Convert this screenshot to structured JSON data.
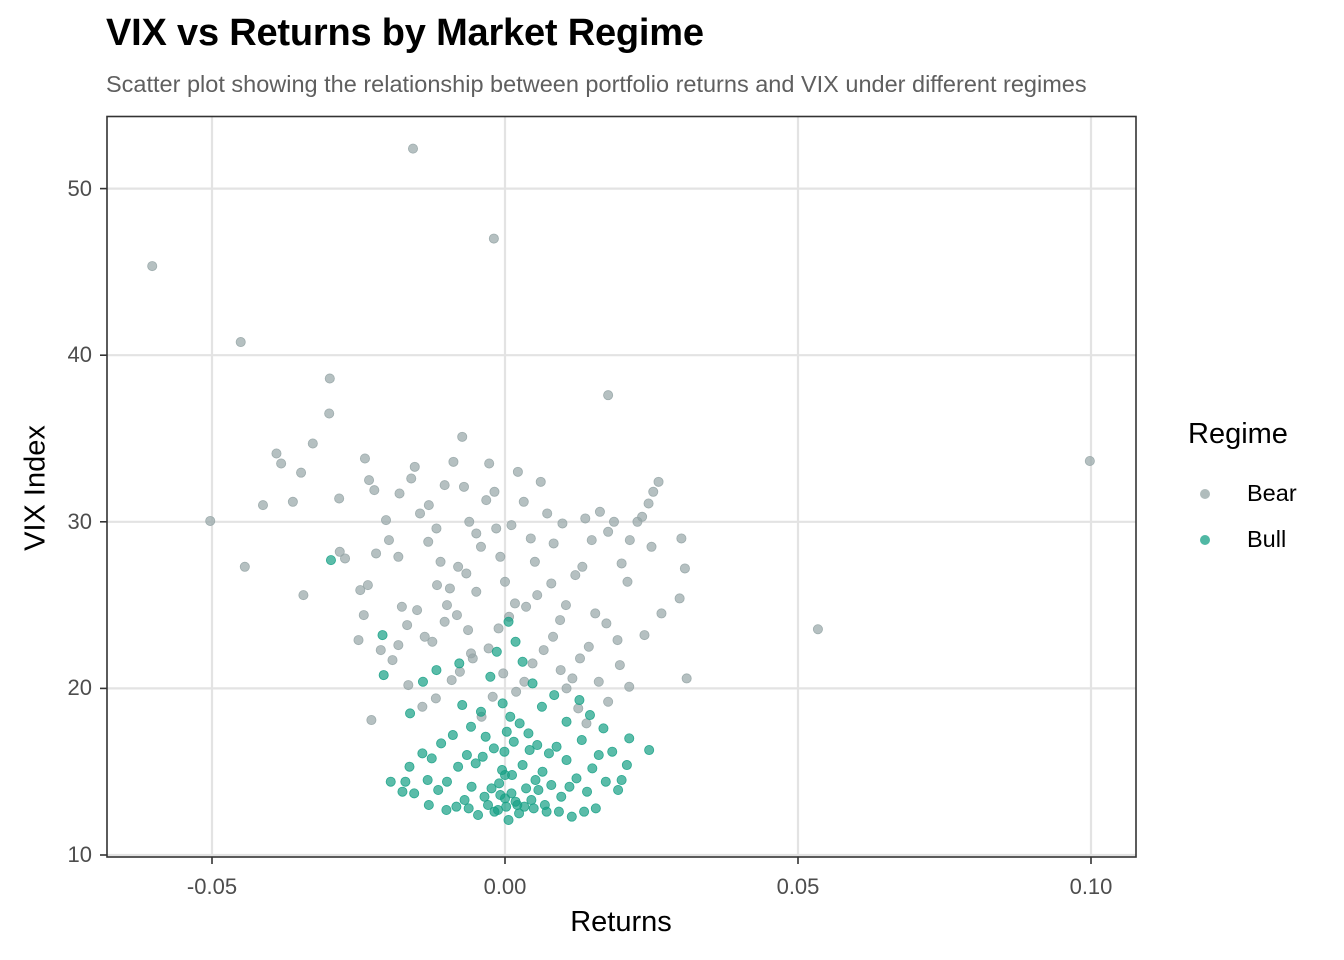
{
  "title": "VIX vs Returns by Market Regime",
  "subtitle": "Scatter plot showing the relationship between portfolio returns and VIX under different regimes",
  "axes": {
    "x_label": "Returns",
    "y_label": "VIX Index",
    "x_ticks": [
      {
        "value": -0.05,
        "label": "-0.05"
      },
      {
        "value": 0.0,
        "label": "0.00"
      },
      {
        "value": 0.05,
        "label": "0.05"
      },
      {
        "value": 0.1,
        "label": "0.10"
      }
    ],
    "y_ticks": [
      {
        "value": 10,
        "label": "10"
      },
      {
        "value": 20,
        "label": "20"
      },
      {
        "value": 30,
        "label": "30"
      },
      {
        "value": 40,
        "label": "40"
      },
      {
        "value": 50,
        "label": "50"
      }
    ]
  },
  "legend": {
    "title": "Regime",
    "items": [
      {
        "label": "Bear",
        "color": "#95A5A6"
      },
      {
        "label": "Bull",
        "color": "#16A085"
      }
    ]
  },
  "chart_data": {
    "type": "scatter",
    "title": "VIX vs Returns by Market Regime",
    "subtitle": "Scatter plot showing the relationship between portfolio returns and VIX under different regimes",
    "xlabel": "Returns",
    "ylabel": "VIX Index",
    "xlim": [
      -0.0676,
      0.1079
    ],
    "ylim": [
      9.9,
      54.3
    ],
    "x_ticks": [
      -0.05,
      0.0,
      0.05,
      0.1
    ],
    "y_ticks": [
      10,
      20,
      30,
      40,
      50
    ],
    "grid": true,
    "legend_position": "right",
    "point_alpha": 0.7,
    "series": [
      {
        "name": "Bear",
        "color": "#95A5A6",
        "points": [
          [
            -0.0602,
            45.35
          ],
          [
            -0.0451,
            40.79
          ],
          [
            -0.0157,
            52.4
          ],
          [
            -0.0019,
            47.0
          ],
          [
            0.0998,
            33.65
          ],
          [
            0.0534,
            23.55
          ],
          [
            0.0176,
            37.6
          ],
          [
            -0.0299,
            38.6
          ],
          [
            -0.03,
            36.5
          ],
          [
            -0.0503,
            30.05
          ],
          [
            -0.0444,
            27.3
          ],
          [
            -0.039,
            34.1
          ],
          [
            -0.0382,
            33.5
          ],
          [
            -0.0348,
            32.95
          ],
          [
            -0.0328,
            34.7
          ],
          [
            -0.0362,
            31.2
          ],
          [
            -0.0413,
            31.0
          ],
          [
            -0.0344,
            25.6
          ],
          [
            -0.0283,
            31.4
          ],
          [
            -0.0282,
            28.2
          ],
          [
            -0.0273,
            27.8
          ],
          [
            -0.0239,
            33.8
          ],
          [
            -0.0232,
            32.5
          ],
          [
            -0.0223,
            31.9
          ],
          [
            -0.0203,
            30.1
          ],
          [
            -0.0247,
            25.9
          ],
          [
            -0.0234,
            26.2
          ],
          [
            -0.022,
            28.1
          ],
          [
            -0.0198,
            28.9
          ],
          [
            -0.0182,
            27.9
          ],
          [
            -0.0241,
            24.4
          ],
          [
            -0.025,
            22.9
          ],
          [
            -0.0228,
            18.1
          ],
          [
            -0.0176,
            24.9
          ],
          [
            -0.0167,
            23.8
          ],
          [
            -0.015,
            24.7
          ],
          [
            -0.016,
            32.6
          ],
          [
            -0.0154,
            33.3
          ],
          [
            -0.018,
            31.7
          ],
          [
            -0.0145,
            30.5
          ],
          [
            -0.013,
            31.0
          ],
          [
            -0.0117,
            29.6
          ],
          [
            -0.0131,
            28.8
          ],
          [
            -0.011,
            27.6
          ],
          [
            -0.0116,
            26.2
          ],
          [
            -0.0099,
            25.0
          ],
          [
            -0.0082,
            24.4
          ],
          [
            -0.0063,
            23.5
          ],
          [
            -0.0058,
            22.1
          ],
          [
            -0.0077,
            21.0
          ],
          [
            -0.0103,
            32.2
          ],
          [
            -0.0088,
            33.6
          ],
          [
            -0.0073,
            35.1
          ],
          [
            -0.007,
            32.1
          ],
          [
            -0.0061,
            30.0
          ],
          [
            -0.0049,
            29.3
          ],
          [
            -0.0041,
            28.5
          ],
          [
            -0.0032,
            31.3
          ],
          [
            -0.0027,
            33.5
          ],
          [
            -0.0018,
            31.8
          ],
          [
            -0.0015,
            29.6
          ],
          [
            -0.0008,
            27.9
          ],
          [
            0.0,
            26.4
          ],
          [
            0.0011,
            29.8
          ],
          [
            0.0022,
            33.0
          ],
          [
            0.0032,
            31.2
          ],
          [
            0.0044,
            29.0
          ],
          [
            0.0051,
            27.6
          ],
          [
            0.0061,
            32.4
          ],
          [
            0.0072,
            30.5
          ],
          [
            0.0083,
            28.7
          ],
          [
            0.0098,
            29.9
          ],
          [
            0.0104,
            25.0
          ],
          [
            0.012,
            26.8
          ],
          [
            0.0132,
            27.3
          ],
          [
            0.0137,
            30.2
          ],
          [
            0.0148,
            28.9
          ],
          [
            0.0162,
            30.6
          ],
          [
            0.0176,
            29.4
          ],
          [
            0.0186,
            30.0
          ],
          [
            0.0199,
            27.5
          ],
          [
            0.0213,
            28.9
          ],
          [
            0.0226,
            30.0
          ],
          [
            0.0234,
            30.3
          ],
          [
            0.0245,
            31.1
          ],
          [
            0.0253,
            31.8
          ],
          [
            0.0262,
            32.4
          ],
          [
            0.025,
            28.5
          ],
          [
            0.0267,
            24.5
          ],
          [
            0.0298,
            25.4
          ],
          [
            0.0301,
            29.0
          ],
          [
            0.0307,
            27.2
          ],
          [
            0.031,
            20.6
          ],
          [
            0.0238,
            23.2
          ],
          [
            0.0209,
            26.4
          ],
          [
            0.0192,
            22.9
          ],
          [
            0.0173,
            23.9
          ],
          [
            0.0154,
            24.5
          ],
          [
            0.0143,
            22.5
          ],
          [
            0.0128,
            21.8
          ],
          [
            0.0115,
            20.6
          ],
          [
            0.0095,
            21.1
          ],
          [
            0.0082,
            23.1
          ],
          [
            0.0066,
            22.3
          ],
          [
            0.0047,
            21.5
          ],
          [
            0.0033,
            20.4
          ],
          [
            0.0019,
            19.8
          ],
          [
            -0.0003,
            20.9
          ],
          [
            -0.0021,
            19.5
          ],
          [
            -0.004,
            18.3
          ],
          [
            -0.0055,
            21.8
          ],
          [
            -0.0091,
            20.5
          ],
          [
            -0.0118,
            19.4
          ],
          [
            -0.0141,
            18.9
          ],
          [
            -0.0165,
            20.2
          ],
          [
            -0.0192,
            21.7
          ],
          [
            -0.0212,
            22.3
          ],
          [
            -0.0182,
            22.6
          ],
          [
            0.0212,
            20.1
          ],
          [
            0.0196,
            21.4
          ],
          [
            0.0176,
            19.2
          ],
          [
            0.016,
            20.4
          ],
          [
            0.0139,
            17.9
          ],
          [
            0.0125,
            18.8
          ],
          [
            0.0105,
            20.0
          ],
          [
            -0.0028,
            22.4
          ],
          [
            -0.0011,
            23.6
          ],
          [
            0.0007,
            24.3
          ],
          [
            0.0017,
            25.1
          ],
          [
            0.0036,
            24.9
          ],
          [
            0.0055,
            25.6
          ],
          [
            0.0079,
            26.3
          ],
          [
            0.0094,
            24.1
          ],
          [
            -0.0049,
            25.8
          ],
          [
            -0.0066,
            26.9
          ],
          [
            -0.008,
            27.3
          ],
          [
            -0.0094,
            26.0
          ],
          [
            -0.0103,
            24.0
          ],
          [
            -0.0124,
            22.8
          ],
          [
            -0.0137,
            23.1
          ]
        ]
      },
      {
        "name": "Bull",
        "color": "#16A085",
        "points": [
          [
            -0.0297,
            27.7
          ],
          [
            -0.0209,
            23.2
          ],
          [
            -0.0207,
            20.8
          ],
          [
            -0.0162,
            18.5
          ],
          [
            -0.014,
            20.4
          ],
          [
            -0.0117,
            21.1
          ],
          [
            -0.0078,
            21.5
          ],
          [
            -0.0073,
            19.0
          ],
          [
            -0.0089,
            17.2
          ],
          [
            -0.0109,
            16.7
          ],
          [
            -0.0125,
            15.8
          ],
          [
            -0.0141,
            16.1
          ],
          [
            -0.0163,
            15.3
          ],
          [
            -0.017,
            14.4
          ],
          [
            -0.0155,
            13.7
          ],
          [
            -0.0132,
            14.5
          ],
          [
            -0.0114,
            13.9
          ],
          [
            -0.0099,
            14.4
          ],
          [
            -0.0083,
            12.9
          ],
          [
            -0.0069,
            13.3
          ],
          [
            -0.0057,
            14.1
          ],
          [
            -0.0046,
            12.4
          ],
          [
            -0.0038,
            15.9
          ],
          [
            -0.0029,
            13.0
          ],
          [
            -0.0018,
            12.6
          ],
          [
            -0.001,
            14.3
          ],
          [
            -0.0005,
            15.1
          ],
          [
            0.0,
            13.4
          ],
          [
            0.0006,
            12.1
          ],
          [
            0.0012,
            14.8
          ],
          [
            0.0018,
            13.2
          ],
          [
            0.0024,
            12.5
          ],
          [
            0.003,
            15.4
          ],
          [
            0.0036,
            14.0
          ],
          [
            0.0042,
            16.3
          ],
          [
            0.0049,
            12.8
          ],
          [
            0.0057,
            13.9
          ],
          [
            0.0064,
            15.0
          ],
          [
            0.0071,
            12.6
          ],
          [
            0.0079,
            14.2
          ],
          [
            0.0088,
            16.5
          ],
          [
            0.0096,
            13.5
          ],
          [
            0.0105,
            15.7
          ],
          [
            0.0114,
            12.3
          ],
          [
            0.0122,
            14.6
          ],
          [
            0.0131,
            16.9
          ],
          [
            0.014,
            13.8
          ],
          [
            0.0149,
            15.2
          ],
          [
            0.016,
            16.0
          ],
          [
            0.0172,
            14.4
          ],
          [
            0.0183,
            16.2
          ],
          [
            0.0193,
            13.9
          ],
          [
            0.0199,
            14.5
          ],
          [
            0.0208,
            15.4
          ],
          [
            0.0246,
            16.3
          ],
          [
            0.0212,
            17.0
          ],
          [
            0.0168,
            17.6
          ],
          [
            0.0145,
            18.4
          ],
          [
            0.0127,
            19.3
          ],
          [
            0.0105,
            18.0
          ],
          [
            0.0084,
            19.6
          ],
          [
            0.0063,
            18.9
          ],
          [
            0.0047,
            20.3
          ],
          [
            0.003,
            21.6
          ],
          [
            0.0018,
            22.8
          ],
          [
            0.0006,
            24.0
          ],
          [
            -0.0014,
            22.2
          ],
          [
            -0.0025,
            20.7
          ],
          [
            -0.0041,
            18.6
          ],
          [
            -0.0058,
            17.7
          ],
          [
            -0.0001,
            16.2
          ],
          [
            0.0003,
            17.4
          ],
          [
            0.0009,
            18.3
          ],
          [
            -0.0004,
            19.1
          ],
          [
            0.0015,
            16.8
          ],
          [
            -0.0019,
            16.4
          ],
          [
            -0.0033,
            17.1
          ],
          [
            0.0025,
            17.9
          ],
          [
            0.004,
            17.3
          ],
          [
            0.0055,
            16.6
          ],
          [
            -0.005,
            15.5
          ],
          [
            -0.0065,
            16.0
          ],
          [
            -0.008,
            15.3
          ],
          [
            -0.0195,
            14.4
          ],
          [
            -0.0175,
            13.8
          ],
          [
            0.0002,
            12.9
          ],
          [
            -0.0008,
            13.6
          ],
          [
            0.0011,
            13.7
          ],
          [
            0.0021,
            13.0
          ],
          [
            0.0033,
            12.9
          ],
          [
            -0.0012,
            12.7
          ],
          [
            -0.0023,
            14.0
          ],
          [
            0.0045,
            13.3
          ],
          [
            0.0052,
            14.5
          ],
          [
            -0.0035,
            13.5
          ],
          [
            0.0068,
            13.0
          ],
          [
            0.0075,
            16.1
          ],
          [
            -0.0062,
            12.8
          ],
          [
            0.0092,
            12.6
          ],
          [
            0.011,
            14.1
          ],
          [
            0.0135,
            12.6
          ],
          [
            0.0155,
            12.8
          ],
          [
            -0.013,
            13.0
          ],
          [
            -0.01,
            12.7
          ],
          [
            0.0,
            14.8
          ]
        ]
      }
    ]
  }
}
